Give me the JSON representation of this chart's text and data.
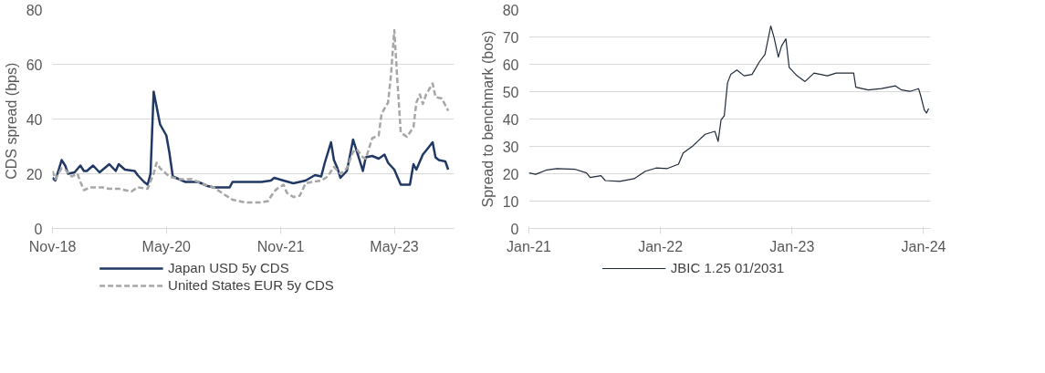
{
  "chart_data": [
    {
      "type": "line",
      "ylabel": "CDS spread  (bps)",
      "xlim": [
        "2018-11-01",
        "2024-02-12"
      ],
      "ylim": [
        0,
        80
      ],
      "yticks": [
        0,
        20,
        40,
        60,
        80
      ],
      "xticks": [
        {
          "value": "2018-11-01",
          "label": "Nov-18"
        },
        {
          "value": "2020-05-01",
          "label": "May-20"
        },
        {
          "value": "2021-11-01",
          "label": "Nov-21"
        },
        {
          "value": "2023-05-01",
          "label": "May-23"
        }
      ],
      "grid": "y",
      "legend": "bottom",
      "series": [
        {
          "name": "Japan USD 5y CDS",
          "color": "#1f3864",
          "line_style": "solid",
          "x": [
            "2018-11-01",
            "2018-11-15",
            "2018-12-15",
            "2019-01-01",
            "2019-01-15",
            "2019-02-15",
            "2019-03-15",
            "2019-04-01",
            "2019-04-15",
            "2019-05-15",
            "2019-06-15",
            "2019-08-01",
            "2019-09-01",
            "2019-09-15",
            "2019-10-15",
            "2019-12-01",
            "2019-12-15",
            "2020-01-15",
            "2020-02-01",
            "2020-02-15",
            "2020-03-01",
            "2020-04-01",
            "2020-05-01",
            "2020-05-15",
            "2020-06-01",
            "2020-07-01",
            "2020-08-01",
            "2020-10-01",
            "2020-11-15",
            "2020-12-15",
            "2021-03-01",
            "2021-03-15",
            "2021-06-01",
            "2021-08-01",
            "2021-09-15",
            "2021-10-01",
            "2021-11-15",
            "2022-01-01",
            "2022-03-01",
            "2022-04-15",
            "2022-05-15",
            "2022-06-01",
            "2022-07-01",
            "2022-07-15",
            "2022-08-01",
            "2022-08-15",
            "2022-09-15",
            "2022-10-01",
            "2022-10-15",
            "2022-11-15",
            "2022-12-01",
            "2022-12-15",
            "2023-01-15",
            "2023-02-15",
            "2023-03-15",
            "2023-04-01",
            "2023-05-01",
            "2023-06-01",
            "2023-07-01",
            "2023-07-15",
            "2023-08-01",
            "2023-08-15",
            "2023-09-15",
            "2023-10-01",
            "2023-11-01",
            "2023-11-15",
            "2023-12-01",
            "2024-01-01",
            "2024-01-15"
          ],
          "values": [
            18.5,
            17.5,
            25,
            23,
            20,
            20.5,
            23,
            21,
            21,
            23,
            20.5,
            23.5,
            21,
            23.5,
            21.5,
            21,
            19.5,
            17,
            16,
            20,
            50,
            38,
            34,
            28,
            19,
            18,
            17,
            17,
            15.5,
            15,
            15,
            17,
            17,
            17,
            17.5,
            18.5,
            17.5,
            16.5,
            17.5,
            19.5,
            19,
            24,
            31.5,
            25,
            22,
            18.5,
            21,
            27,
            32.5,
            25,
            21,
            26,
            26.5,
            25.5,
            27,
            24,
            21.5,
            16,
            16,
            16,
            23.5,
            21.5,
            27,
            28.5,
            31.5,
            26,
            25,
            24.5,
            21.5
          ]
        },
        {
          "name": "United States EUR 5y CDS",
          "color": "#a6a6a6",
          "line_style": "dashed",
          "x": [
            "2018-11-01",
            "2018-11-15",
            "2018-12-15",
            "2019-01-01",
            "2019-02-01",
            "2019-03-01",
            "2019-03-15",
            "2019-04-01",
            "2019-05-01",
            "2019-07-01",
            "2019-08-01",
            "2019-09-15",
            "2019-11-15",
            "2019-12-15",
            "2020-02-01",
            "2020-03-01",
            "2020-03-15",
            "2020-04-01",
            "2020-05-15",
            "2020-07-01",
            "2020-09-01",
            "2020-11-01",
            "2020-12-15",
            "2021-02-01",
            "2021-03-15",
            "2021-05-15",
            "2021-08-01",
            "2021-09-01",
            "2021-10-01",
            "2021-10-15",
            "2021-11-15",
            "2021-12-01",
            "2022-01-01",
            "2022-02-01",
            "2022-03-01",
            "2022-04-01",
            "2022-05-15",
            "2022-06-15",
            "2022-07-15",
            "2022-08-15",
            "2022-09-15",
            "2022-10-15",
            "2022-11-01",
            "2022-12-01",
            "2022-12-15",
            "2023-01-15",
            "2023-02-15",
            "2023-03-01",
            "2023-04-01",
            "2023-04-15",
            "2023-05-01",
            "2023-05-15",
            "2023-06-01",
            "2023-07-01",
            "2023-08-01",
            "2023-08-15",
            "2023-09-01",
            "2023-09-15",
            "2023-10-01",
            "2023-11-01",
            "2023-11-15",
            "2023-12-15",
            "2024-01-15"
          ],
          "values": [
            21,
            18,
            22,
            21.5,
            19,
            20,
            17,
            14,
            15,
            15,
            14.5,
            14.5,
            13.5,
            15,
            14.5,
            20,
            24,
            22,
            19,
            18,
            18,
            16,
            15,
            12.5,
            10.5,
            9.5,
            9.5,
            10,
            13.5,
            14.5,
            16,
            13,
            11.5,
            12,
            16.5,
            17,
            17.5,
            19,
            22.5,
            20,
            22,
            28,
            29,
            26,
            25.5,
            33,
            34,
            42,
            46,
            56,
            72.5,
            55,
            35,
            33.5,
            37,
            46,
            49,
            45.5,
            49,
            53,
            48,
            47.5,
            43
          ]
        }
      ]
    },
    {
      "type": "line",
      "ylabel": "Spread to benchmark (bos)",
      "xlim": [
        "2021-01-01",
        "2024-01-20"
      ],
      "ylim": [
        0,
        80
      ],
      "yticks": [
        0,
        10,
        20,
        30,
        40,
        50,
        60,
        70,
        80
      ],
      "xticks": [
        {
          "value": "2021-01-01",
          "label": "Jan-21"
        },
        {
          "value": "2022-01-01",
          "label": "Jan-22"
        },
        {
          "value": "2023-01-01",
          "label": "Jan-23"
        },
        {
          "value": "2024-01-01",
          "label": "Jan-24"
        }
      ],
      "grid": "y",
      "legend": "bottom",
      "series": [
        {
          "name": "JBIC 1.25 01/2031",
          "color": "#1f2a3a",
          "line_style": "solid",
          "x": [
            "2021-01-01",
            "2021-01-20",
            "2021-02-20",
            "2021-03-20",
            "2021-05-10",
            "2021-06-10",
            "2021-06-20",
            "2021-07-20",
            "2021-08-01",
            "2021-09-10",
            "2021-10-20",
            "2021-11-20",
            "2021-12-20",
            "2022-01-20",
            "2022-02-20",
            "2022-03-05",
            "2022-04-01",
            "2022-05-05",
            "2022-06-01",
            "2022-06-10",
            "2022-06-18",
            "2022-06-27",
            "2022-07-06",
            "2022-07-15",
            "2022-08-01",
            "2022-08-21",
            "2022-09-12",
            "2022-10-03",
            "2022-10-18",
            "2022-11-03",
            "2022-11-12",
            "2022-11-24",
            "2022-12-03",
            "2022-12-15",
            "2022-12-24",
            "2023-01-15",
            "2023-02-06",
            "2023-03-03",
            "2023-04-09",
            "2023-05-03",
            "2023-06-21",
            "2023-06-27",
            "2023-08-01",
            "2023-09-06",
            "2023-10-15",
            "2023-11-01",
            "2023-11-24",
            "2023-12-18",
            "2023-12-24",
            "2024-01-03",
            "2024-01-09",
            "2024-01-15"
          ],
          "values": [
            20.3,
            19.8,
            21.4,
            21.9,
            21.6,
            20.3,
            18.6,
            19.3,
            17.5,
            17.2,
            18.2,
            20.9,
            22.1,
            21.9,
            23.5,
            27.6,
            30.2,
            34.4,
            35.5,
            31.8,
            39.6,
            41.2,
            53.2,
            56.3,
            57.9,
            55.8,
            56.3,
            61,
            63.6,
            74,
            69.9,
            62.6,
            66.7,
            69.3,
            58.9,
            55.8,
            53.7,
            56.8,
            55.8,
            56.8,
            56.8,
            51.6,
            50.6,
            51.1,
            52.1,
            50.6,
            50.1,
            51.1,
            48.5,
            43.3,
            42.2,
            43.8
          ]
        }
      ]
    }
  ]
}
